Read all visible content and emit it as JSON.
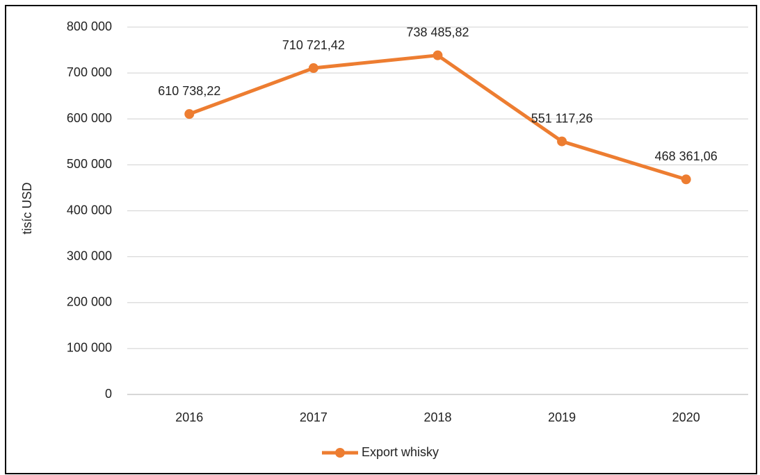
{
  "chart_data": {
    "type": "line",
    "y_label": "tisíc USD",
    "categories": [
      "2016",
      "2017",
      "2018",
      "2019",
      "2020"
    ],
    "series": [
      {
        "name": "Export whisky",
        "color": "#ed7d31",
        "values": [
          610738.22,
          710721.42,
          738485.82,
          551117.26,
          468361.06
        ],
        "value_labels": [
          "610 738,22",
          "710 721,42",
          "738 485,82",
          "551 117,26",
          "468 361,06"
        ]
      }
    ],
    "ylim": [
      0,
      800000
    ],
    "yticks": [
      0,
      {
        "value": 100000,
        "label": "100 000"
      },
      {
        "value": 200000,
        "label": "200 000"
      },
      {
        "value": 300000,
        "label": "300 000"
      },
      {
        "value": 400000,
        "label": "400 000"
      },
      {
        "value": 500000,
        "label": "500 000"
      },
      {
        "value": 600000,
        "label": "600 000"
      },
      {
        "value": 700000,
        "label": "700 000"
      },
      {
        "value": 800000,
        "label": "800 000"
      }
    ],
    "grid": true,
    "legend": "bottom"
  }
}
